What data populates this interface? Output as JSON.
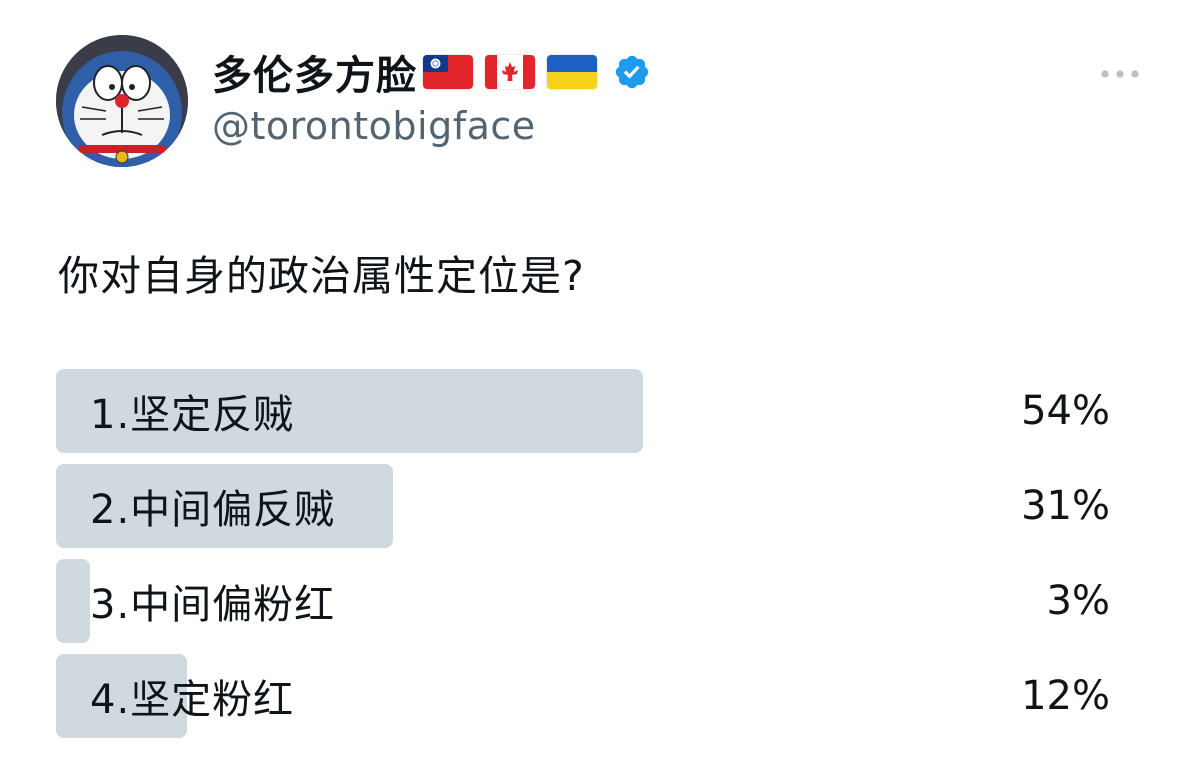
{
  "profile": {
    "display_name": "多伦多方脸",
    "flags": [
      "taiwan-flag-icon",
      "canada-flag-icon",
      "ukraine-flag-icon"
    ],
    "verified_icon": "verified-badge-icon",
    "handle": "@torontobigface",
    "avatar_icon": "doraemon-avatar"
  },
  "more_icon": "more-dots-icon",
  "tweet": {
    "text": "你对自身的政治属性定位是?"
  },
  "poll": {
    "options": [
      {
        "label": "1.坚定反贼",
        "percent_text": "54%",
        "percent": 54
      },
      {
        "label": "2.中间偏反贼",
        "percent_text": "31%",
        "percent": 31
      },
      {
        "label": "3.中间偏粉红",
        "percent_text": "3%",
        "percent": 3
      },
      {
        "label": "4.坚定粉红",
        "percent_text": "12%",
        "percent": 12
      }
    ]
  },
  "colors": {
    "poll_bar": "#cfd9de",
    "verified": "#1d9bf0",
    "text": "#0f1419",
    "secondary_text": "#536471"
  }
}
